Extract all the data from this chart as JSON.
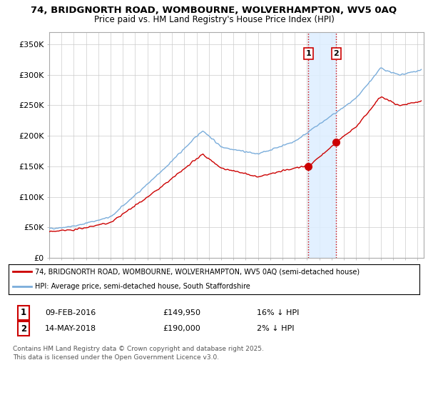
{
  "title1": "74, BRIDGNORTH ROAD, WOMBOURNE, WOLVERHAMPTON, WV5 0AQ",
  "title2": "Price paid vs. HM Land Registry's House Price Index (HPI)",
  "ylabel_ticks": [
    "£0",
    "£50K",
    "£100K",
    "£150K",
    "£200K",
    "£250K",
    "£300K",
    "£350K"
  ],
  "ytick_values": [
    0,
    50000,
    100000,
    150000,
    200000,
    250000,
    300000,
    350000
  ],
  "ylim": [
    0,
    370000
  ],
  "xlim_start": 1995.0,
  "xlim_end": 2025.5,
  "purchase1_date": 2016.1,
  "purchase1_price": 149950,
  "purchase2_date": 2018.37,
  "purchase2_price": 190000,
  "red_line_color": "#cc0000",
  "blue_line_color": "#7aaddb",
  "marker_color": "#cc0000",
  "vline_color": "#cc0000",
  "vshade_color": "#ddeeff",
  "legend_line1": "74, BRIDGNORTH ROAD, WOMBOURNE, WOLVERHAMPTON, WV5 0AQ (semi-detached house)",
  "legend_line2": "HPI: Average price, semi-detached house, South Staffordshire",
  "note1_num": "1",
  "note1_date": "09-FEB-2016",
  "note1_price": "£149,950",
  "note1_hpi": "16% ↓ HPI",
  "note2_num": "2",
  "note2_date": "14-MAY-2018",
  "note2_price": "£190,000",
  "note2_hpi": "2% ↓ HPI",
  "footer": "Contains HM Land Registry data © Crown copyright and database right 2025.\nThis data is licensed under the Open Government Licence v3.0."
}
